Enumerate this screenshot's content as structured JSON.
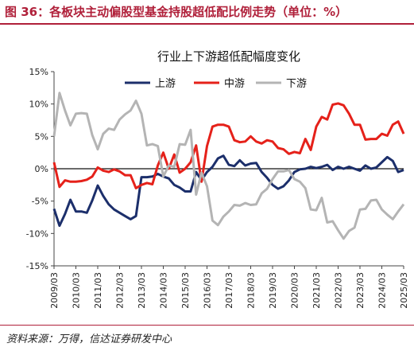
{
  "header": {
    "title": "图 36：各板块主动偏股型基金持股超低配比例走势（单位：%）",
    "rule_color": "#b0203a"
  },
  "footer": {
    "source": "资料来源：万得，信达证券研发中心"
  },
  "chart_data": {
    "type": "line",
    "title": "行业上下游超低配幅度变化",
    "xlabel": "",
    "ylabel": "",
    "ylim": [
      -15,
      15
    ],
    "yticks": [
      15,
      10,
      5,
      0,
      -5,
      -10,
      -15
    ],
    "ytick_labels": [
      "15%",
      "10%",
      "5%",
      "0%",
      "-5%",
      "-10%",
      "-15%"
    ],
    "xlim": [
      2009.25,
      2025.25
    ],
    "xticks": [
      2009.25,
      2010.25,
      2011.25,
      2012.25,
      2013.25,
      2014.25,
      2015.25,
      2016.25,
      2017.25,
      2018.25,
      2019.25,
      2020.25,
      2021.25,
      2022.25,
      2023.25,
      2024.25,
      2025.25
    ],
    "xtick_labels": [
      "2009/03",
      "2010/03",
      "2011/03",
      "2012/03",
      "2013/03",
      "2014/03",
      "2015/03",
      "2016/03",
      "2017/03",
      "2018/03",
      "2019/03",
      "2020/03",
      "2021/03",
      "2022/03",
      "2023/03",
      "2024/03",
      "2025/03"
    ],
    "grid": false,
    "legend_position": "top-center",
    "series": [
      {
        "name": "上游",
        "color": "#1c2f6b",
        "x": [
          2009.25,
          2009.5,
          2009.75,
          2010.0,
          2010.25,
          2010.5,
          2010.75,
          2011.0,
          2011.25,
          2011.5,
          2011.75,
          2012.0,
          2012.25,
          2012.5,
          2012.75,
          2013.0,
          2013.25,
          2013.5,
          2013.75,
          2014.0,
          2014.25,
          2014.5,
          2014.75,
          2015.0,
          2015.25,
          2015.5,
          2015.75,
          2016.0,
          2016.25,
          2016.5,
          2016.75,
          2017.0,
          2017.25,
          2017.5,
          2017.75,
          2018.0,
          2018.25,
          2018.5,
          2018.75,
          2019.0,
          2019.25,
          2019.5,
          2019.75,
          2020.0,
          2020.25,
          2020.5,
          2020.75,
          2021.0,
          2021.25,
          2021.5,
          2021.75,
          2022.0,
          2022.25,
          2022.5,
          2022.75,
          2023.0,
          2023.25,
          2023.5,
          2023.75,
          2024.0,
          2024.25,
          2024.5,
          2024.75,
          2025.0,
          2025.25
        ],
        "y": [
          -6.2,
          -8.8,
          -7.0,
          -4.8,
          -6.6,
          -6.6,
          -6.8,
          -4.9,
          -2.6,
          -4.2,
          -5.5,
          -6.3,
          -6.8,
          -7.3,
          -7.8,
          -7.3,
          -1.3,
          -1.3,
          -1.2,
          -0.8,
          -1.2,
          -1.5,
          -2.5,
          -2.9,
          -3.5,
          -3.5,
          -0.5,
          -1.8,
          -0.5,
          0.3,
          1.6,
          2.0,
          0.6,
          0.4,
          1.3,
          0.5,
          0.8,
          0.9,
          -0.5,
          -1.4,
          -2.5,
          -3.1,
          -2.7,
          -1.8,
          -0.5,
          -0.1,
          0.0,
          0.3,
          0.1,
          0.3,
          0.6,
          -0.2,
          0.3,
          0.0,
          0.3,
          0.0,
          -0.3,
          0.5,
          0.0,
          0.2,
          1.0,
          1.8,
          1.2,
          -0.5,
          -0.2
        ]
      },
      {
        "name": "中游",
        "color": "#e5211a",
        "x": [
          2009.25,
          2009.5,
          2009.75,
          2010.0,
          2010.25,
          2010.5,
          2010.75,
          2011.0,
          2011.25,
          2011.5,
          2011.75,
          2012.0,
          2012.25,
          2012.5,
          2012.75,
          2013.0,
          2013.25,
          2013.5,
          2013.75,
          2014.0,
          2014.25,
          2014.5,
          2014.75,
          2015.0,
          2015.25,
          2015.5,
          2015.75,
          2016.0,
          2016.25,
          2016.5,
          2016.75,
          2017.0,
          2017.25,
          2017.5,
          2017.75,
          2018.0,
          2018.25,
          2018.5,
          2018.75,
          2019.0,
          2019.25,
          2019.5,
          2019.75,
          2020.0,
          2020.25,
          2020.5,
          2020.75,
          2021.0,
          2021.25,
          2021.5,
          2021.75,
          2022.0,
          2022.25,
          2022.5,
          2022.75,
          2023.0,
          2023.25,
          2023.5,
          2023.75,
          2024.0,
          2024.25,
          2024.5,
          2024.75,
          2025.0,
          2025.25
        ],
        "y": [
          1.0,
          -2.8,
          -1.8,
          -2.0,
          -2.0,
          -1.9,
          -1.7,
          -1.2,
          0.2,
          -0.3,
          -0.5,
          -0.1,
          -0.4,
          -1.0,
          -1.0,
          -3.0,
          -2.5,
          -2.2,
          -2.4,
          0.5,
          2.5,
          0.0,
          2.2,
          -0.6,
          0.0,
          1.0,
          3.6,
          -2.0,
          3.5,
          6.5,
          6.8,
          6.8,
          6.5,
          4.4,
          4.1,
          4.2,
          5.0,
          4.2,
          3.9,
          4.4,
          4.2,
          3.2,
          3.0,
          2.3,
          2.6,
          2.4,
          4.6,
          2.9,
          6.5,
          8.0,
          7.6,
          9.9,
          10.1,
          9.8,
          8.5,
          6.8,
          6.8,
          4.5,
          4.6,
          4.6,
          5.4,
          5.1,
          6.8,
          7.3,
          5.4
        ]
      },
      {
        "name": "下游",
        "color": "#b4b4b4",
        "x": [
          2009.25,
          2009.5,
          2009.75,
          2010.0,
          2010.25,
          2010.5,
          2010.75,
          2011.0,
          2011.25,
          2011.5,
          2011.75,
          2012.0,
          2012.25,
          2012.5,
          2012.75,
          2013.0,
          2013.25,
          2013.5,
          2013.75,
          2014.0,
          2014.25,
          2014.5,
          2014.75,
          2015.0,
          2015.25,
          2015.5,
          2015.75,
          2016.0,
          2016.25,
          2016.5,
          2016.75,
          2017.0,
          2017.25,
          2017.5,
          2017.75,
          2018.0,
          2018.25,
          2018.5,
          2018.75,
          2019.0,
          2019.25,
          2019.5,
          2019.75,
          2020.0,
          2020.25,
          2020.5,
          2020.75,
          2021.0,
          2021.25,
          2021.5,
          2021.75,
          2022.0,
          2022.25,
          2022.5,
          2022.75,
          2023.0,
          2023.25,
          2023.5,
          2023.75,
          2024.0,
          2024.25,
          2024.5,
          2024.75,
          2025.0,
          2025.25
        ],
        "y": [
          5.0,
          11.7,
          9.0,
          6.7,
          8.5,
          8.6,
          8.5,
          5.2,
          3.0,
          5.4,
          6.2,
          6.0,
          7.6,
          8.4,
          9.0,
          10.5,
          8.5,
          3.6,
          3.8,
          3.5,
          -1.2,
          0.5,
          0.3,
          3.8,
          3.7,
          6.0,
          -4.0,
          -0.6,
          -2.7,
          -8.0,
          -8.7,
          -7.4,
          -6.6,
          -5.6,
          -5.7,
          -5.3,
          -5.6,
          -5.5,
          -3.8,
          -3.1,
          -1.6,
          -0.4,
          -0.4,
          -0.2,
          -1.6,
          -2.0,
          -3.0,
          -6.3,
          -6.4,
          -4.5,
          -8.3,
          -8.1,
          -9.5,
          -10.8,
          -9.6,
          -9.1,
          -6.3,
          -6.2,
          -4.9,
          -4.8,
          -6.3,
          -7.1,
          -7.8,
          -6.6,
          -5.5
        ]
      }
    ]
  }
}
